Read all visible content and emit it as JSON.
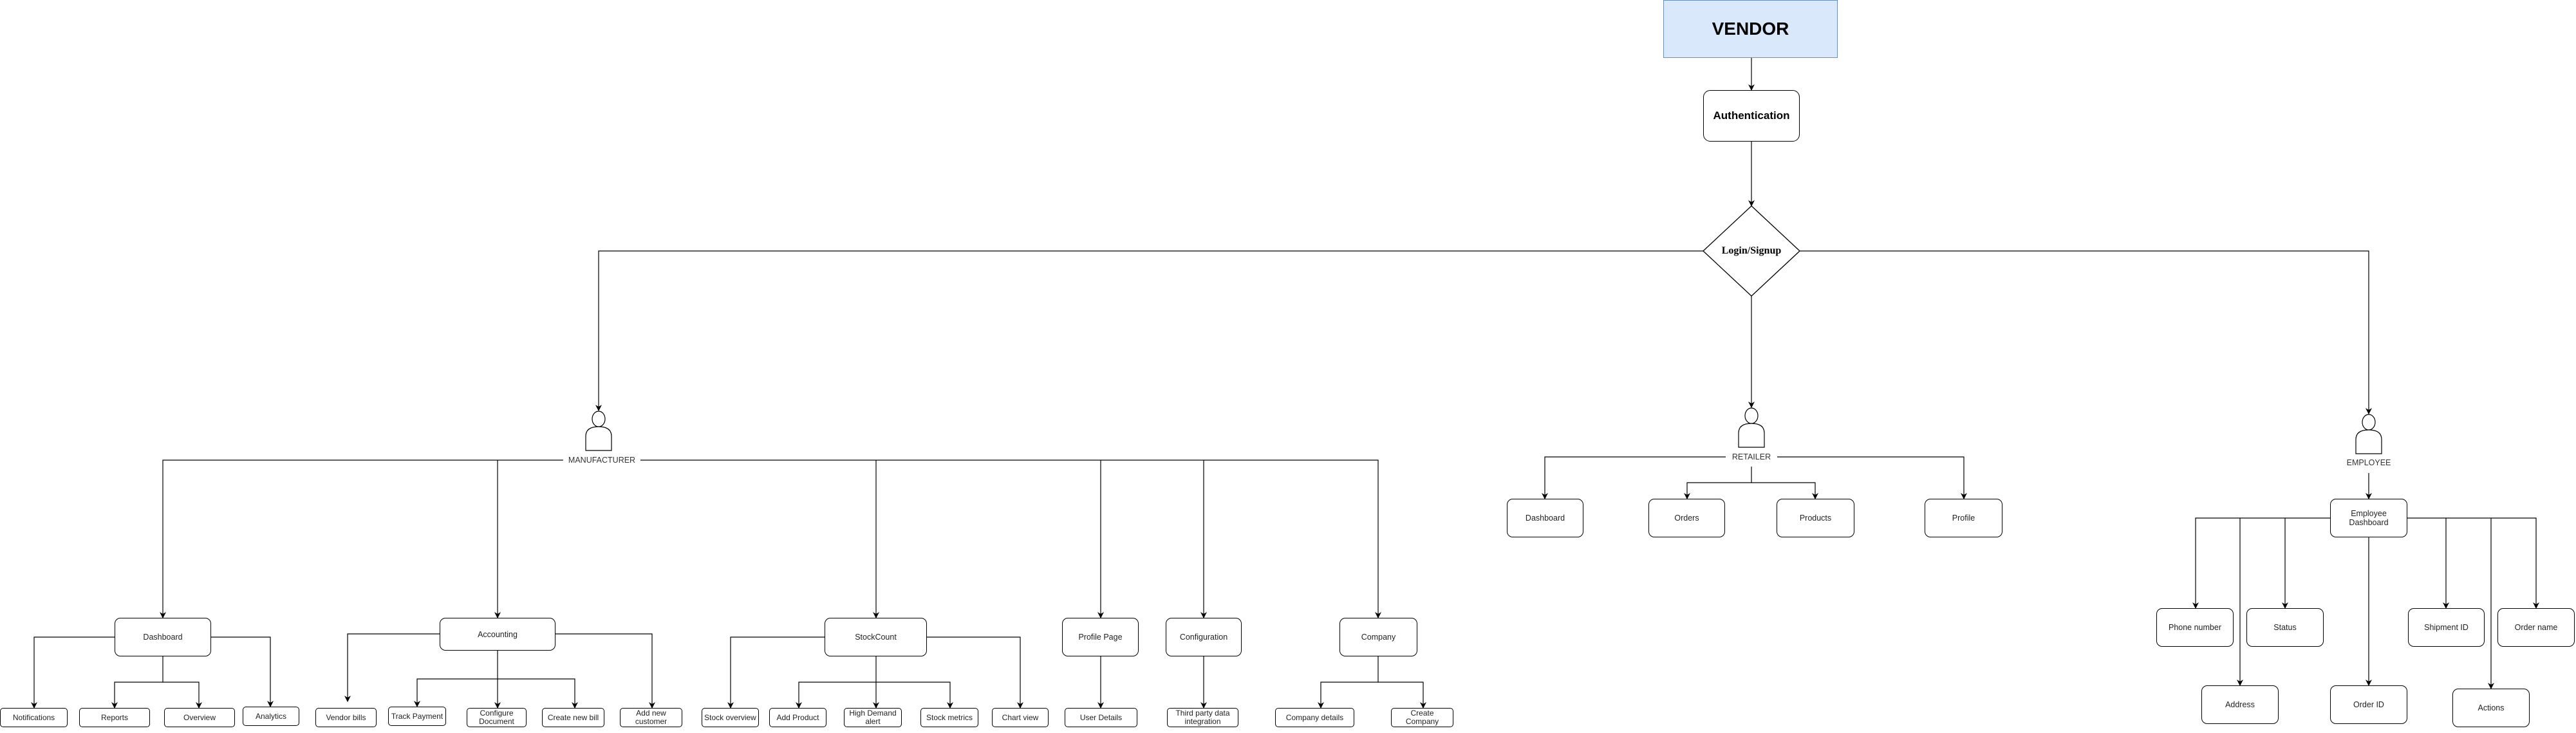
{
  "root": {
    "vendor": "VENDOR",
    "authentication": "Authentication",
    "decision": "Login/Signup"
  },
  "colors": {
    "vendor_fill": "#dae8fc",
    "vendor_border": "#6c8ebf",
    "stroke": "#000000"
  },
  "manufacturer": {
    "label": "MANUFACTURER",
    "modules": {
      "dashboard": "Dashboard",
      "accounting": "Accounting",
      "stockcount": "StockCount",
      "profile_page": "Profile Page",
      "configuration": "Configuration",
      "company": "Company"
    },
    "leaves": {
      "notifications": "Notifications",
      "reports": "Reports",
      "overview": "Overview",
      "analytics": "Analytics",
      "vendor_bills": "Vendor bills",
      "track_payment": "Track Payment",
      "configure_document": "Configure Document",
      "create_new_bill": "Create new bill",
      "add_new_customer": "Add new customer",
      "stock_overview": "Stock overview",
      "add_product": "Add Product",
      "high_demand_alert": "High Demand alert",
      "stock_metrics": "Stock metrics",
      "chart_view": "Chart view",
      "user_details": "User Details",
      "third_party": "Third party data integration",
      "company_details": "Company details",
      "create_company": "Create Company"
    }
  },
  "retailer": {
    "label": "RETAILER",
    "modules": {
      "dashboard": "Dashboard",
      "orders": "Orders",
      "products": "Products",
      "profile": "Profile"
    }
  },
  "employee": {
    "label": "EMPLOYEE",
    "dashboard": "Employee Dashboard",
    "fields": {
      "phone_number": "Phone number",
      "address": "Address",
      "status": "Status",
      "order_id": "Order ID",
      "shipment_id": "Shipment ID",
      "actions": "Actions",
      "order_name": "Order name"
    }
  }
}
